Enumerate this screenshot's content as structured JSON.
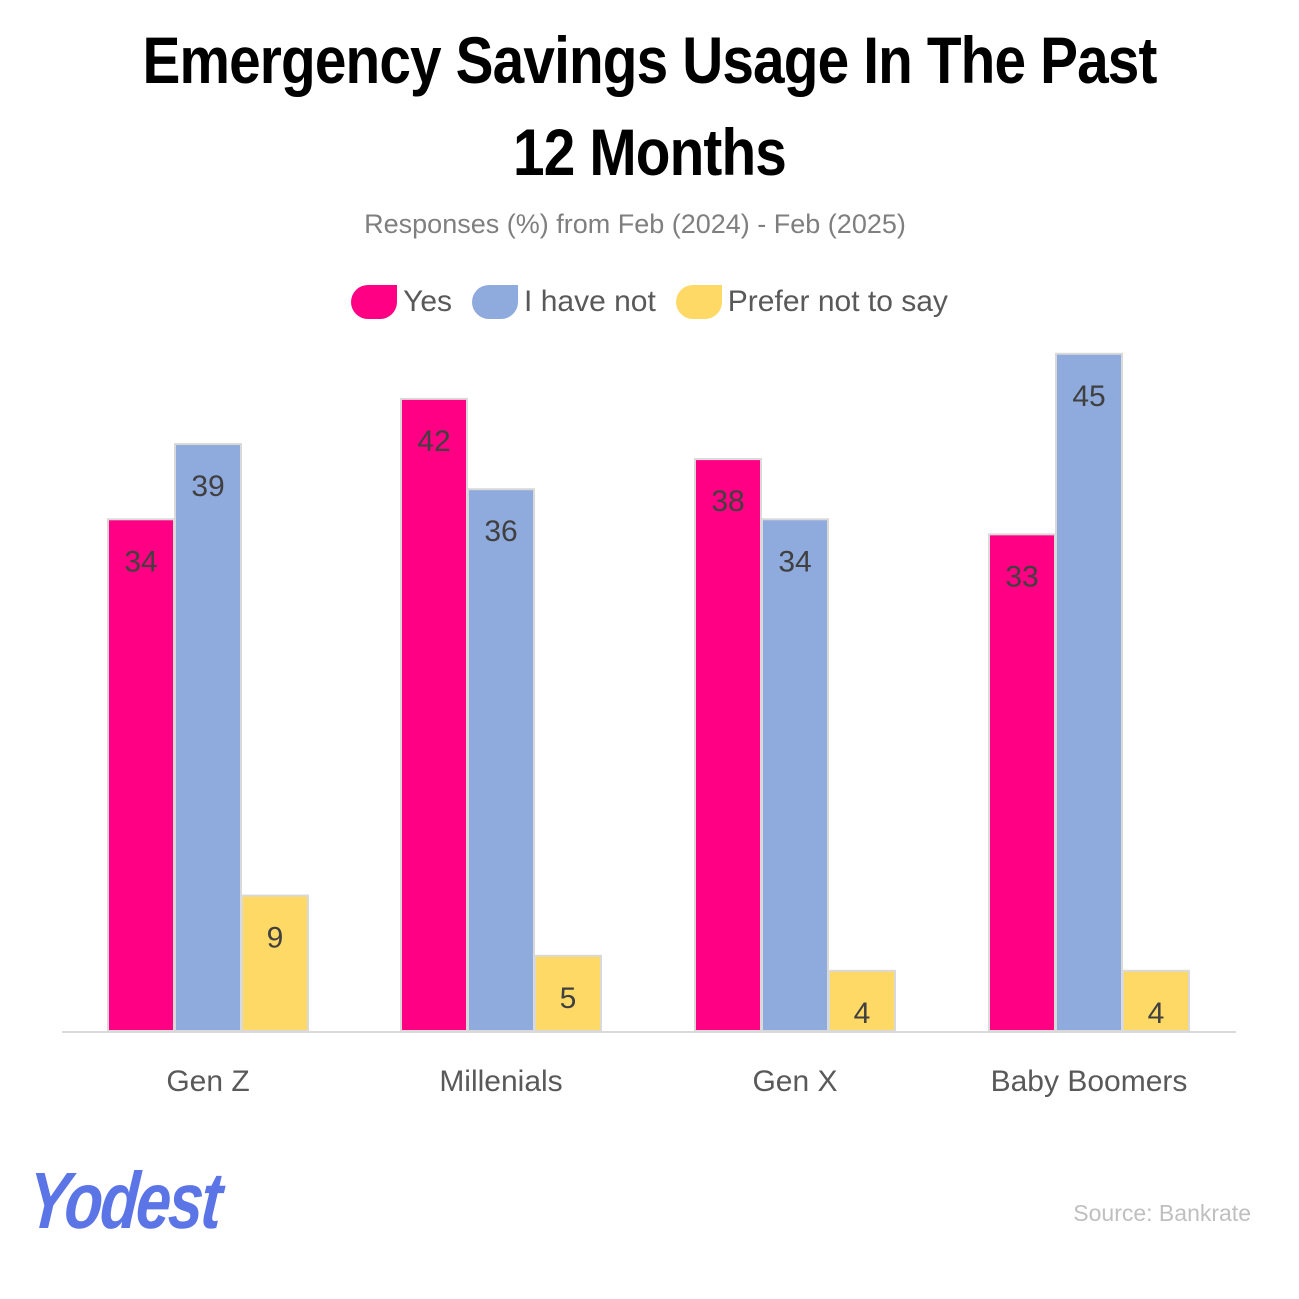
{
  "chart_data": {
    "type": "bar",
    "title_lines": [
      "Emergency Savings Usage In The Past",
      "12 Months"
    ],
    "subtitle": "Responses (%) from Feb (2024) - Feb (2025)",
    "categories": [
      "Gen Z",
      "Millenials",
      "Gen X",
      "Baby Boomers"
    ],
    "series": [
      {
        "name": "Yes",
        "color": "#ff0084",
        "values": [
          34,
          42,
          38,
          33
        ]
      },
      {
        "name": "I have not",
        "color": "#8faadc",
        "values": [
          39,
          36,
          34,
          45
        ]
      },
      {
        "name": "Prefer not to say",
        "color": "#ffd966",
        "values": [
          9,
          5,
          4,
          4
        ]
      }
    ],
    "ylim": [
      0,
      45
    ],
    "xlabel": "",
    "ylabel": "",
    "grid": false,
    "legend_position": "top-center"
  },
  "footer": {
    "logo_text": "Yodest",
    "source": "Source: Bankrate"
  }
}
